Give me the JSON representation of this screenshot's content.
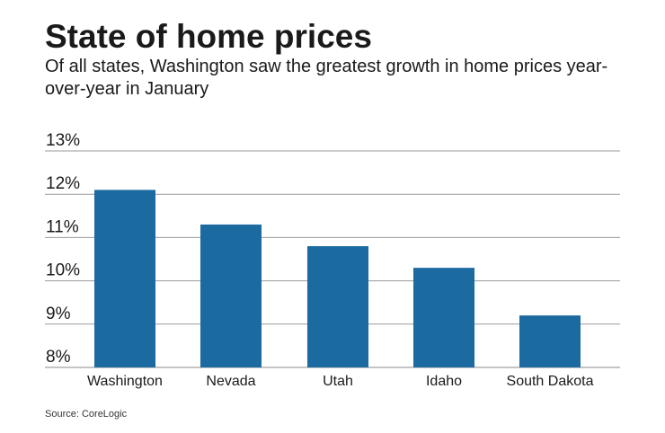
{
  "title": "State of home prices",
  "subtitle": "Of all states, Washington saw the greatest growth in home prices year-over-year in January",
  "source": "Source: CoreLogic",
  "chart_data": {
    "type": "bar",
    "categories": [
      "Washington",
      "Nevada",
      "Utah",
      "Idaho",
      "South Dakota"
    ],
    "values": [
      12.1,
      11.3,
      10.8,
      10.3,
      9.2
    ],
    "ylim": [
      8,
      13
    ],
    "yticks": [
      8,
      9,
      10,
      11,
      12,
      13
    ],
    "ytick_labels": [
      "8%",
      "9%",
      "10%",
      "11%",
      "12%",
      "13%"
    ],
    "grid": true,
    "bar_color": "#1b6aa0"
  }
}
